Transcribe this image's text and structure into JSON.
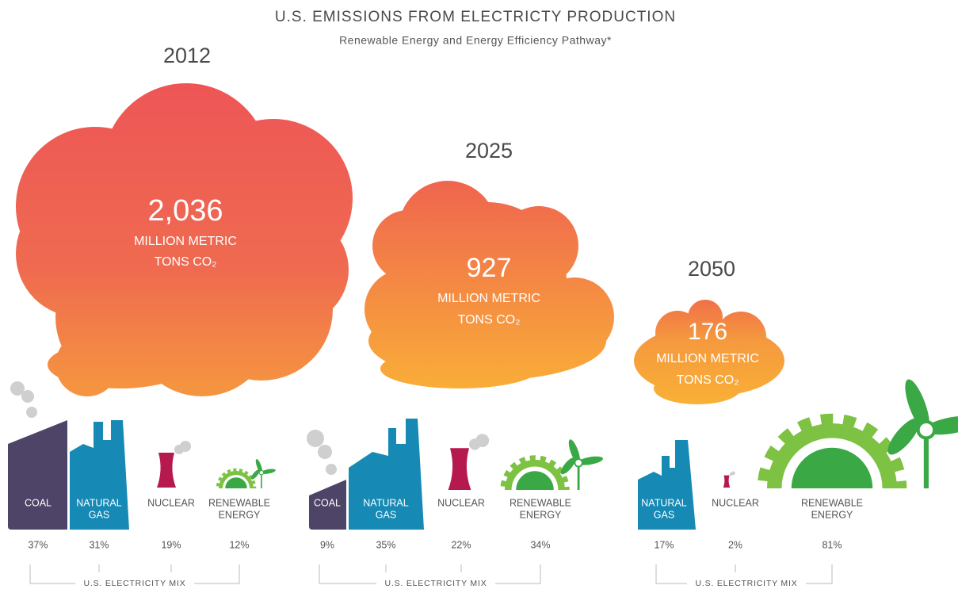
{
  "title": "U.S. EMISSIONS FROM ELECTRICTY PRODUCTION",
  "subtitle": "Renewable Energy and Energy Efficiency Pathway*",
  "scenarios": [
    {
      "year": "2012",
      "emissions": "2,036",
      "unit": [
        "MILLION METRIC",
        "TONS CO₂"
      ],
      "mix_label": "U.S. ELECTRICITY MIX",
      "sources": [
        {
          "label": [
            "COAL"
          ],
          "share": "37%"
        },
        {
          "label": [
            "NATURAL",
            "GAS"
          ],
          "share": "31%"
        },
        {
          "label": [
            "NUCLEAR"
          ],
          "share": "19%"
        },
        {
          "label": [
            "RENEWABLE",
            "ENERGY"
          ],
          "share": "12%"
        }
      ]
    },
    {
      "year": "2025",
      "emissions": "927",
      "unit": [
        "MILLION METRIC",
        "TONS CO₂"
      ],
      "mix_label": "U.S. ELECTRICITY MIX",
      "sources": [
        {
          "label": [
            "COAL"
          ],
          "share": "9%"
        },
        {
          "label": [
            "NATURAL",
            "GAS"
          ],
          "share": "35%"
        },
        {
          "label": [
            "NUCLEAR"
          ],
          "share": "22%"
        },
        {
          "label": [
            "RENEWABLE",
            "ENERGY"
          ],
          "share": "34%"
        }
      ]
    },
    {
      "year": "2050",
      "emissions": "176",
      "unit": [
        "MILLION METRIC",
        "TONS CO₂"
      ],
      "mix_label": "U.S. ELECTRICITY MIX",
      "sources": [
        {
          "label": [
            "NATURAL",
            "GAS"
          ],
          "share": "17%"
        },
        {
          "label": [
            "NUCLEAR"
          ],
          "share": "2%"
        },
        {
          "label": [
            "RENEWABLE",
            "ENERGY"
          ],
          "share": "81%"
        }
      ]
    }
  ]
}
